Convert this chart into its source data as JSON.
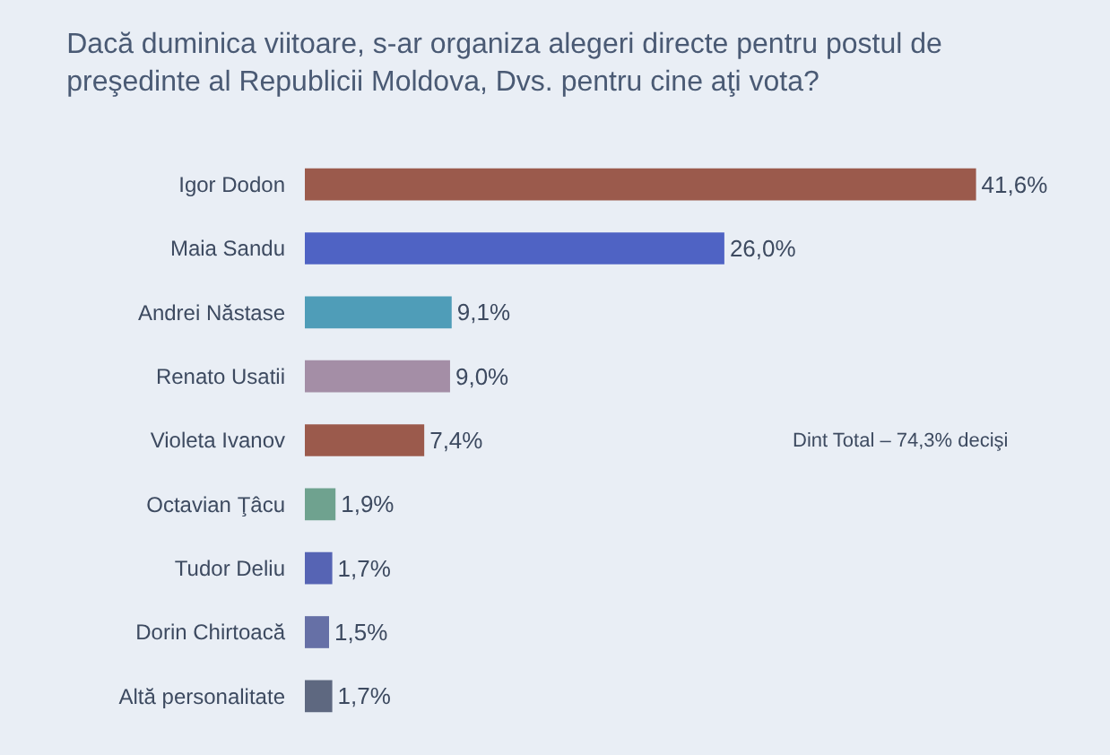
{
  "chart_data": {
    "type": "bar",
    "orientation": "horizontal",
    "title": "Dacă duminica viitoare, s-ar organiza alegeri directe pentru postul de preşedinte al Republicii Moldova, Dvs. pentru cine aţi vota?",
    "categories": [
      "Igor Dodon",
      "Maia Sandu",
      "Andrei Năstase",
      "Renato Usatii",
      "Violeta Ivanov",
      "Octavian Ţâcu",
      "Tudor Deliu",
      "Dorin Chirtoacă",
      "Altă personalitate"
    ],
    "values": [
      41.6,
      26.0,
      9.1,
      9.0,
      7.4,
      1.9,
      1.7,
      1.5,
      1.7
    ],
    "colors": [
      "#9b5a4c",
      "#4f63c4",
      "#4f9db8",
      "#a48ea6",
      "#9b5a4c",
      "#6fa28f",
      "#5664b4",
      "#6670a6",
      "#5e6880"
    ],
    "value_labels": [
      "41,6%",
      "26,0%",
      "9,1%",
      "9,0%",
      "7,4%",
      "1,9%",
      "1,7%",
      "1,5%",
      "1,7%"
    ],
    "annotations": [
      "Dint Total – 74,3% decişi"
    ]
  }
}
